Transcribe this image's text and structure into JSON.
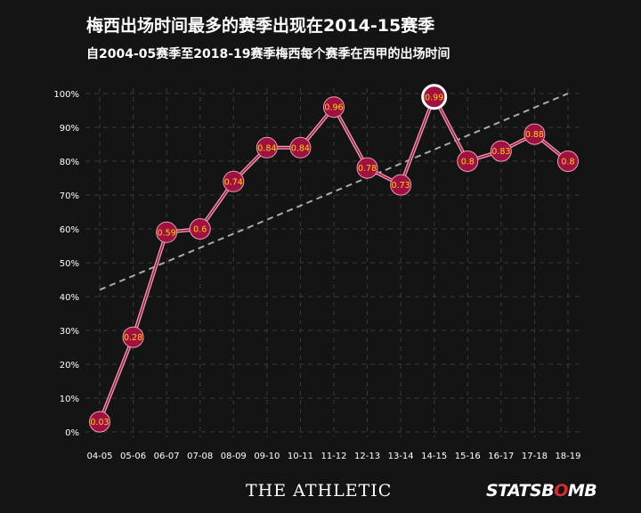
{
  "title": "梅西出场时间最多的赛季出现在2014-15赛季",
  "subtitle": "自2004-05赛季至2018-19赛季梅西每个赛季在西甲的出场时间",
  "footer": {
    "left_logo": "THE ATHLETIC",
    "right_logo_main": "STATSB",
    "right_logo_accent": "O",
    "right_logo_end": "MB"
  },
  "colors": {
    "background": "#141414",
    "line": "#e8a0b0",
    "marker_fill": "#a01040",
    "label_text": "#ffd400",
    "trend": "#aaaaaa",
    "grid": "#3a3a3a",
    "highlight_ring": "#ffffff"
  },
  "chart_data": {
    "type": "line",
    "title": "梅西出场时间最多的赛季出现在2014-15赛季",
    "subtitle": "自2004-05赛季至2018-19赛季梅西每个赛季在西甲的出场时间",
    "xlabel": "",
    "ylabel": "",
    "categories": [
      "04-05",
      "05-06",
      "06-07",
      "07-08",
      "08-09",
      "09-10",
      "10-11",
      "11-12",
      "12-13",
      "13-14",
      "14-15",
      "15-16",
      "16-17",
      "17-18",
      "18-19"
    ],
    "values": [
      0.03,
      0.28,
      0.59,
      0.6,
      0.74,
      0.84,
      0.84,
      0.96,
      0.78,
      0.73,
      0.99,
      0.8,
      0.83,
      0.88,
      0.8
    ],
    "data_labels": [
      "0.03",
      "0.28",
      "0.59",
      "0.6",
      "0.74",
      "0.84",
      "0.84",
      "0.96",
      "0.78",
      "0.73",
      "0.99",
      "0.8",
      "0.83",
      "0.88",
      "0.8"
    ],
    "highlight_index": 10,
    "ylim": [
      0,
      1
    ],
    "yticks": [
      0,
      0.1,
      0.2,
      0.3,
      0.4,
      0.5,
      0.6,
      0.7,
      0.8,
      0.9,
      1.0
    ],
    "ytick_labels": [
      "0%",
      "10%",
      "20%",
      "30%",
      "40%",
      "50%",
      "60%",
      "70%",
      "80%",
      "90%",
      "100%"
    ],
    "trend_line": {
      "start": 0.42,
      "end": 1.0
    },
    "grid": true,
    "legend": "none"
  }
}
